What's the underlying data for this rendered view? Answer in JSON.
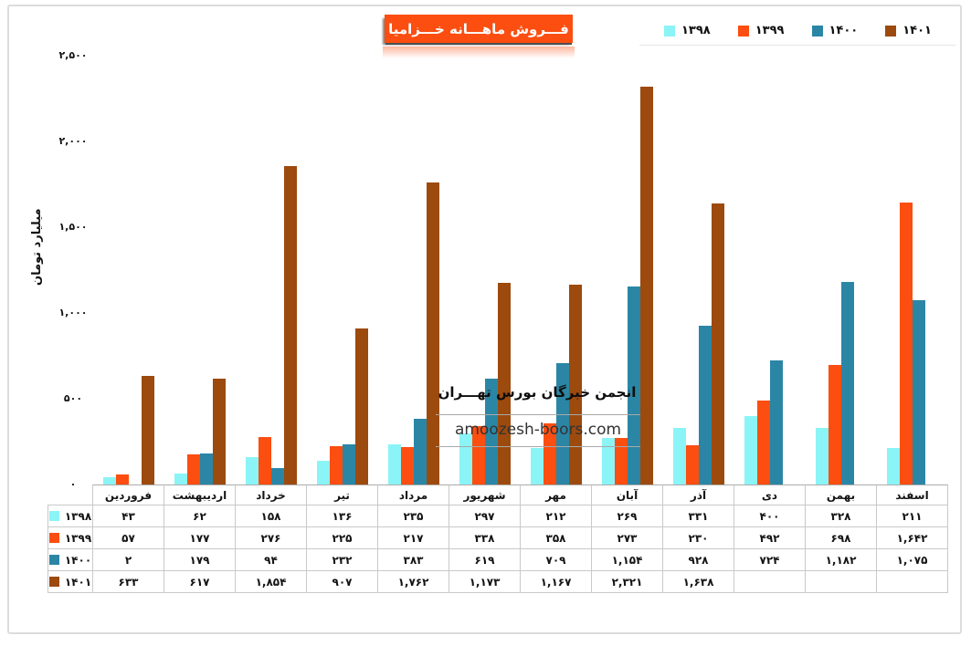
{
  "title": {
    "text": "فـــروش ماهـــانه خـــزامیا"
  },
  "y_axis": {
    "title": "میلیارد تومان",
    "ticks": [
      {
        "label": "۰",
        "value": 0
      },
      {
        "label": "۵۰۰",
        "value": 500
      },
      {
        "label": "۱,۰۰۰",
        "value": 1000
      },
      {
        "label": "۱,۵۰۰",
        "value": 1500
      },
      {
        "label": "۲,۰۰۰",
        "value": 2000
      },
      {
        "label": "۲,۵۰۰",
        "value": 2500
      }
    ]
  },
  "watermark": {
    "line1": "انجمن خبرگان بورس تهـــران",
    "line2": "amoozesh-boors.com"
  },
  "chart_data": {
    "type": "bar",
    "title": "فـــروش ماهـــانه خـــزامیا",
    "ylabel": "میلیارد تومان",
    "ylim": [
      0,
      2500
    ],
    "grid": false,
    "legend_position": "top-right",
    "categories": [
      "فروردین",
      "اردیبهشت",
      "خرداد",
      "تیر",
      "مرداد",
      "شهریور",
      "مهر",
      "آبان",
      "آذر",
      "دی",
      "بهمن",
      "اسفند"
    ],
    "series": [
      {
        "key": "1398",
        "name": "۱۳۹۸",
        "color": "#8BF4F6",
        "values": [
          43,
          62,
          158,
          136,
          235,
          297,
          212,
          269,
          331,
          400,
          328,
          211
        ]
      },
      {
        "key": "1399",
        "name": "۱۳۹۹",
        "color": "#FB4E10",
        "values": [
          57,
          177,
          276,
          225,
          217,
          338,
          358,
          273,
          230,
          492,
          698,
          1642
        ]
      },
      {
        "key": "1400",
        "name": "۱۴۰۰",
        "color": "#2B86A5",
        "values": [
          2,
          179,
          94,
          232,
          383,
          619,
          709,
          1154,
          928,
          724,
          1182,
          1075
        ]
      },
      {
        "key": "1401",
        "name": "۱۴۰۱",
        "color": "#9C4A0E",
        "values": [
          633,
          617,
          1854,
          907,
          1762,
          1173,
          1167,
          2321,
          1638,
          null,
          null,
          null
        ]
      }
    ]
  },
  "table": {
    "display_values": [
      [
        "۴۳",
        "۶۲",
        "۱۵۸",
        "۱۳۶",
        "۲۳۵",
        "۲۹۷",
        "۲۱۲",
        "۲۶۹",
        "۳۳۱",
        "۴۰۰",
        "۳۲۸",
        "۲۱۱"
      ],
      [
        "۵۷",
        "۱۷۷",
        "۲۷۶",
        "۲۲۵",
        "۲۱۷",
        "۳۳۸",
        "۳۵۸",
        "۲۷۳",
        "۲۳۰",
        "۴۹۲",
        "۶۹۸",
        "۱,۶۴۲"
      ],
      [
        "۲",
        "۱۷۹",
        "۹۴",
        "۲۳۲",
        "۳۸۳",
        "۶۱۹",
        "۷۰۹",
        "۱,۱۵۴",
        "۹۲۸",
        "۷۲۴",
        "۱,۱۸۲",
        "۱,۰۷۵"
      ],
      [
        "۶۳۳",
        "۶۱۷",
        "۱,۸۵۴",
        "۹۰۷",
        "۱,۷۶۲",
        "۱,۱۷۳",
        "۱,۱۶۷",
        "۲,۳۲۱",
        "۱,۶۳۸",
        "",
        "",
        ""
      ]
    ]
  }
}
